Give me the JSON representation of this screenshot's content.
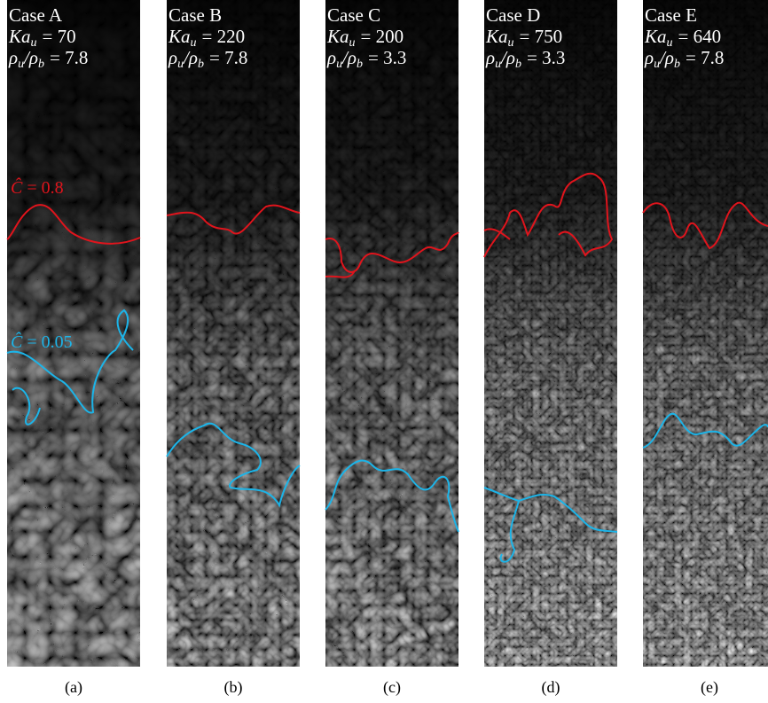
{
  "panels": [
    {
      "case": "Case A",
      "ka": {
        "symbol": "Ka",
        "sub": "u",
        "value": "= 70"
      },
      "density": {
        "rho1": "ρ",
        "sub1": "u",
        "rho2": "/ρ",
        "sub2": "b",
        "value": "= 7.8"
      },
      "caption": "(a)"
    },
    {
      "case": "Case B",
      "ka": {
        "symbol": "Ka",
        "sub": "u",
        "value": "= 220"
      },
      "density": {
        "rho1": "ρ",
        "sub1": "u",
        "rho2": "/ρ",
        "sub2": "b",
        "value": "= 7.8"
      },
      "caption": "(b)"
    },
    {
      "case": "Case C",
      "ka": {
        "symbol": "Ka",
        "sub": "u",
        "value": "= 200"
      },
      "density": {
        "rho1": "ρ",
        "sub1": "u",
        "rho2": "/ρ",
        "sub2": "b",
        "value": "= 3.3"
      },
      "caption": "(c)"
    },
    {
      "case": "Case D",
      "ka": {
        "symbol": "Ka",
        "sub": "u",
        "value": "= 750"
      },
      "density": {
        "rho1": "ρ",
        "sub1": "u",
        "rho2": "/ρ",
        "sub2": "b",
        "value": "= 3.3"
      },
      "caption": "(d)"
    },
    {
      "case": "Case E",
      "ka": {
        "symbol": "Ka",
        "sub": "u",
        "value": "= 640"
      },
      "density": {
        "rho1": "ρ",
        "sub1": "u",
        "rho2": "/ρ",
        "sub2": "b",
        "value": "= 7.8"
      },
      "caption": "(e)"
    }
  ],
  "contour_labels": {
    "red": {
      "symbol": "Ĉ",
      "value": "= 0.8"
    },
    "cyan": {
      "symbol": "Ĉ",
      "value": "= 0.05"
    }
  }
}
